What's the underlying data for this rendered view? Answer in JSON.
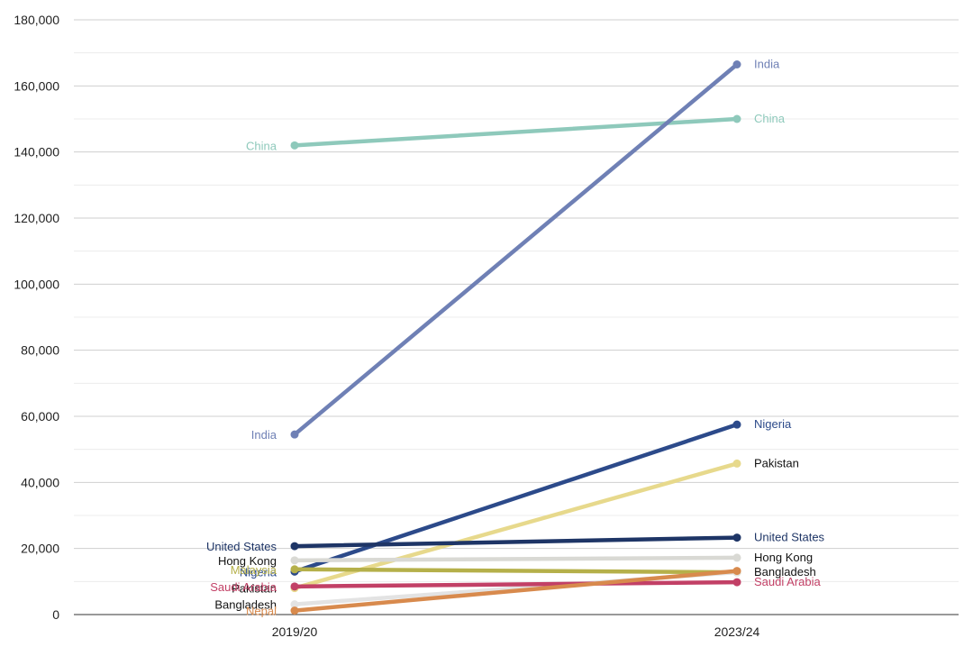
{
  "chart_data": {
    "type": "line",
    "categories": [
      "2019/20",
      "2023/24"
    ],
    "ylim": [
      0,
      180000
    ],
    "y_ticks": [
      0,
      20000,
      40000,
      60000,
      80000,
      100000,
      120000,
      140000,
      160000,
      180000
    ],
    "y_tick_labels": [
      "0",
      "20,000",
      "40,000",
      "60,000",
      "80,000",
      "100,000",
      "120,000",
      "140,000",
      "160,000",
      "180,000"
    ],
    "grid": true,
    "series": [
      {
        "name": "China",
        "values": [
          142000,
          150000
        ],
        "color": "#8ec9bb",
        "label_left": "China",
        "label_right": "China"
      },
      {
        "name": "India",
        "values": [
          54500,
          166500
        ],
        "color": "#6f80b5",
        "label_left": "India",
        "label_right": "India"
      },
      {
        "name": "Nigeria",
        "values": [
          13000,
          57500
        ],
        "color": "#2c4a8a",
        "label_left": "Nigeria",
        "label_right": "Nigeria"
      },
      {
        "name": "Pakistan",
        "values": [
          8000,
          45700
        ],
        "color": "#e7d98c",
        "label_left": "Pakistan",
        "label_right": "Pakistan"
      },
      {
        "name": "United States",
        "values": [
          20700,
          23300
        ],
        "color": "#1e3566",
        "label_left": "United States",
        "label_right": "United States"
      },
      {
        "name": "Hong Kong",
        "values": [
          16400,
          17200
        ],
        "color": "#d9d9d4",
        "label_left": "Hong Kong",
        "label_right": "Hong Kong"
      },
      {
        "name": "Malaysia",
        "values": [
          13700,
          12800
        ],
        "color": "#b5b04a",
        "label_left": "Malaysia",
        "label_right": ""
      },
      {
        "name": "Bangladesh",
        "values": [
          3100,
          12800
        ],
        "color": "#e3e3e3",
        "label_left": "Bangladesh",
        "label_right": "Bangladesh"
      },
      {
        "name": "Saudi Arabia",
        "values": [
          8500,
          9800
        ],
        "color": "#c24066",
        "label_left": "Saudi Arabia",
        "label_right": "Saudi Arabia"
      },
      {
        "name": "Nepal",
        "values": [
          1200,
          13200
        ],
        "color": "#d88a4d",
        "label_left": "Nepal",
        "label_right": ""
      }
    ]
  }
}
